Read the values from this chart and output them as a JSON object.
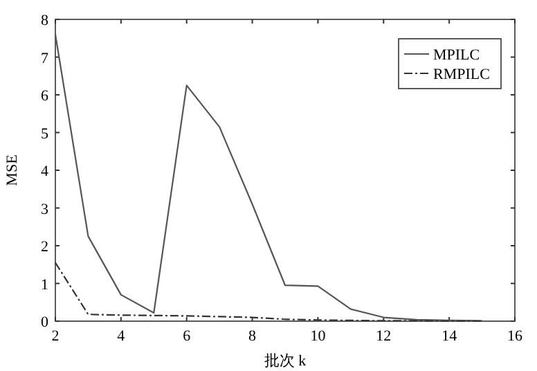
{
  "chart_data": {
    "type": "line",
    "xlabel": "批次 k",
    "ylabel": "MSE",
    "x": [
      2,
      3,
      4,
      5,
      6,
      7,
      8,
      9,
      10,
      11,
      12,
      13,
      14,
      15
    ],
    "xlim": [
      2,
      16
    ],
    "xticks": [
      2,
      4,
      6,
      8,
      10,
      12,
      14,
      16
    ],
    "ylim": [
      0,
      8
    ],
    "yticks": [
      0,
      1,
      2,
      3,
      4,
      5,
      6,
      7,
      8
    ],
    "legend": "top right",
    "grid": false,
    "series": [
      {
        "name": "MPILC",
        "color": "#555555",
        "line_style": "solid",
        "values": [
          7.6,
          2.25,
          0.7,
          0.22,
          6.25,
          5.15,
          3.1,
          0.95,
          0.93,
          0.32,
          0.1,
          0.04,
          0.02,
          0.01
        ]
      },
      {
        "name": "RMPILC",
        "color": "#333333",
        "line_style": "dashdot",
        "values": [
          1.55,
          0.18,
          0.16,
          0.15,
          0.14,
          0.12,
          0.1,
          0.05,
          0.03,
          0.02,
          0.01,
          0.01,
          0,
          0
        ]
      }
    ]
  }
}
